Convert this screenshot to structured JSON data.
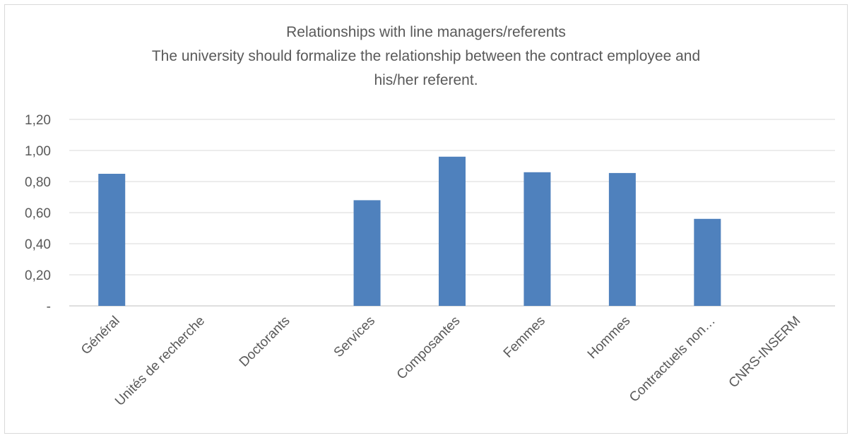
{
  "chart_data": {
    "type": "bar",
    "title_lines": [
      "Relationships with line managers/referents",
      "The university should formalize the relationship between the contract employee and",
      "his/her referent."
    ],
    "categories": [
      "Général",
      "Unités de recherche",
      "Doctorants",
      "Services",
      "Composantes",
      "Femmes",
      "Hommes",
      "Contractuels non…",
      "CNRS-INSERM"
    ],
    "values": [
      0.85,
      0,
      0,
      0.68,
      0.96,
      0.86,
      0.855,
      0.56,
      0
    ],
    "y_tick_labels": [
      "-",
      "0,20",
      "0,40",
      "0,60",
      "0,80",
      "1,00",
      "1,20"
    ],
    "ylim": [
      0,
      1.2
    ],
    "grid": true,
    "legend": "none",
    "bar_color": "#4f81bd"
  }
}
